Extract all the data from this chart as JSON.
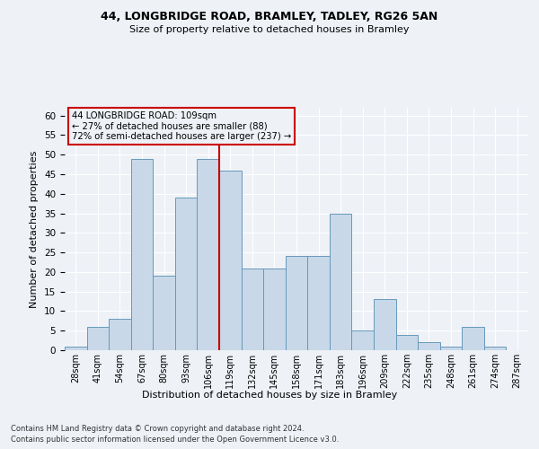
{
  "title1": "44, LONGBRIDGE ROAD, BRAMLEY, TADLEY, RG26 5AN",
  "title2": "Size of property relative to detached houses in Bramley",
  "xlabel": "Distribution of detached houses by size in Bramley",
  "ylabel": "Number of detached properties",
  "bins": [
    "28sqm",
    "41sqm",
    "54sqm",
    "67sqm",
    "80sqm",
    "93sqm",
    "106sqm",
    "119sqm",
    "132sqm",
    "145sqm",
    "158sqm",
    "171sqm",
    "183sqm",
    "196sqm",
    "209sqm",
    "222sqm",
    "235sqm",
    "248sqm",
    "261sqm",
    "274sqm",
    "287sqm"
  ],
  "values": [
    1,
    6,
    8,
    49,
    19,
    39,
    49,
    46,
    21,
    21,
    24,
    24,
    35,
    5,
    13,
    4,
    2,
    1,
    6,
    1,
    0
  ],
  "bar_color": "#c8d8e8",
  "bar_edgecolor": "#6699bb",
  "highlight_index": 6,
  "highlight_line_color": "#cc0000",
  "ylim": [
    0,
    62
  ],
  "yticks": [
    0,
    5,
    10,
    15,
    20,
    25,
    30,
    35,
    40,
    45,
    50,
    55,
    60
  ],
  "annotation_title": "44 LONGBRIDGE ROAD: 109sqm",
  "annotation_line1": "← 27% of detached houses are smaller (88)",
  "annotation_line2": "72% of semi-detached houses are larger (237) →",
  "annotation_box_color": "#cc0000",
  "footnote1": "Contains HM Land Registry data © Crown copyright and database right 2024.",
  "footnote2": "Contains public sector information licensed under the Open Government Licence v3.0.",
  "bg_color": "#eef2f7",
  "grid_color": "#ffffff"
}
